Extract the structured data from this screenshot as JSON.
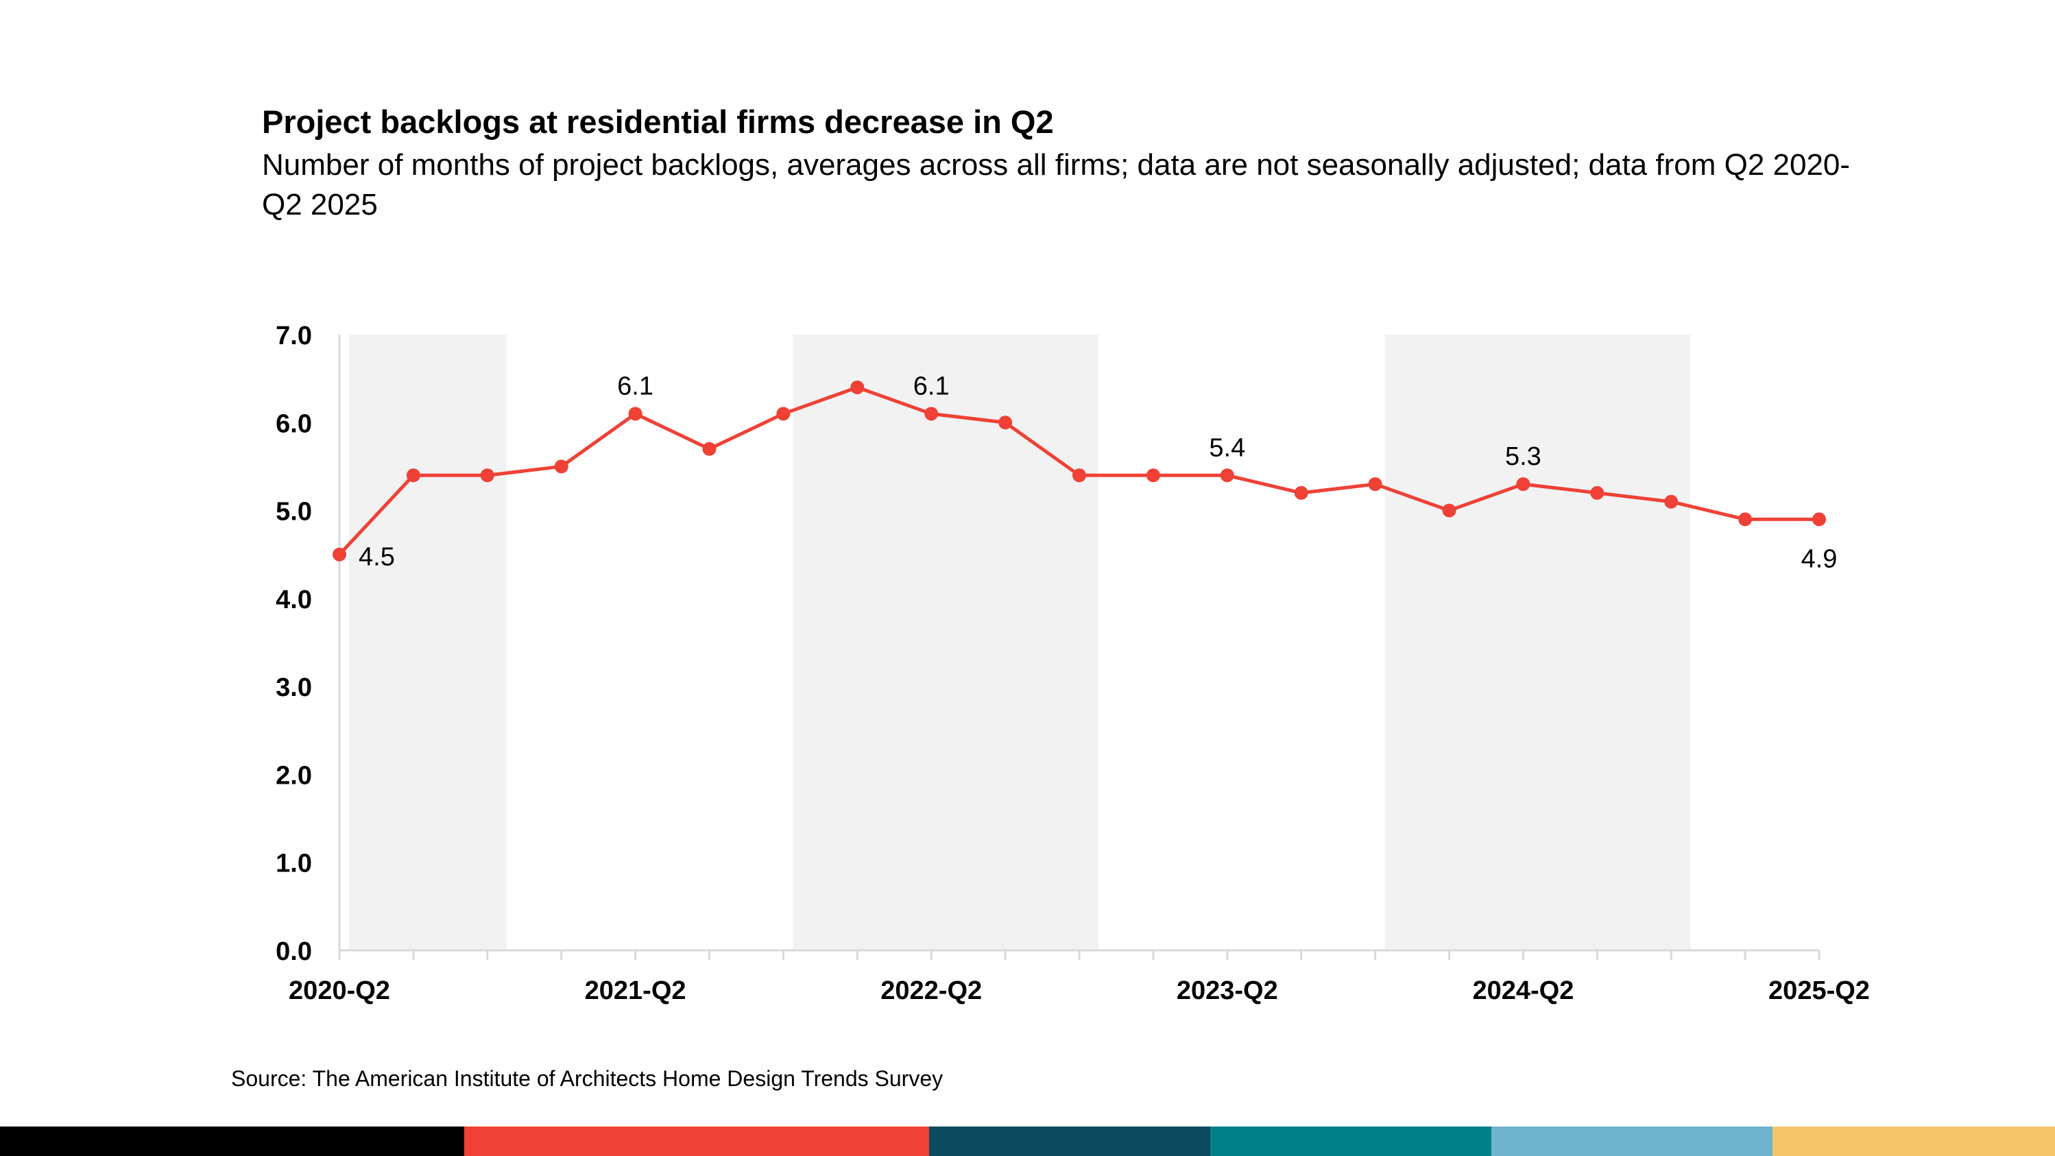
{
  "title": "Project backlogs at residential firms decrease in Q2",
  "subtitle": "Number of months of project backlogs, averages across all firms; data are not seasonally adjusted; data from Q2 2020-Q2 2025",
  "source": "Source: The American Institute of Architects Home Design Trends Survey",
  "chart_data": {
    "type": "line",
    "title": "Project backlogs at residential firms decrease in Q2",
    "xlabel": "",
    "ylabel": "",
    "ylim": [
      0,
      7
    ],
    "yticks": [
      "0.0",
      "1.0",
      "2.0",
      "3.0",
      "4.0",
      "5.0",
      "6.0",
      "7.0"
    ],
    "categories": [
      "2020-Q2",
      "2020-Q3",
      "2020-Q4",
      "2021-Q1",
      "2021-Q2",
      "2021-Q3",
      "2021-Q4",
      "2022-Q1",
      "2022-Q2",
      "2022-Q3",
      "2022-Q4",
      "2023-Q1",
      "2023-Q2",
      "2023-Q3",
      "2023-Q4",
      "2024-Q1",
      "2024-Q2",
      "2024-Q3",
      "2024-Q4",
      "2025-Q1",
      "2025-Q2"
    ],
    "x_tick_labels": [
      {
        "index": 0,
        "label": "2020-Q2"
      },
      {
        "index": 4,
        "label": "2021-Q2"
      },
      {
        "index": 8,
        "label": "2022-Q2"
      },
      {
        "index": 12,
        "label": "2023-Q2"
      },
      {
        "index": 16,
        "label": "2024-Q2"
      },
      {
        "index": 20,
        "label": "2025-Q2"
      }
    ],
    "series": [
      {
        "name": "Project backlogs (months)",
        "color": "#ef4136",
        "values": [
          4.5,
          5.4,
          5.4,
          5.5,
          6.1,
          5.7,
          6.1,
          6.4,
          6.1,
          6.0,
          5.4,
          5.4,
          5.4,
          5.2,
          5.3,
          5.0,
          5.3,
          5.2,
          5.1,
          4.9,
          4.9
        ]
      }
    ],
    "data_labels": [
      {
        "index": 0,
        "text": "4.5",
        "position": "below-right"
      },
      {
        "index": 4,
        "text": "6.1",
        "position": "above"
      },
      {
        "index": 8,
        "text": "6.1",
        "position": "above"
      },
      {
        "index": 12,
        "text": "5.4",
        "position": "above"
      },
      {
        "index": 16,
        "text": "5.3",
        "position": "above"
      },
      {
        "index": 20,
        "text": "4.9",
        "position": "below"
      }
    ],
    "shaded_ranges": [
      {
        "from_index": 0,
        "to_index": 2
      },
      {
        "from_index": 6,
        "to_index": 10
      },
      {
        "from_index": 14,
        "to_index": 18
      }
    ],
    "shade_color": "#f2f2f2",
    "grid": false,
    "legend": "none"
  },
  "bottom_bar": {
    "colors": [
      "#000000",
      "#ef4136",
      "#0c4a60",
      "#00818a",
      "#70b3cf",
      "#f5c667"
    ]
  }
}
